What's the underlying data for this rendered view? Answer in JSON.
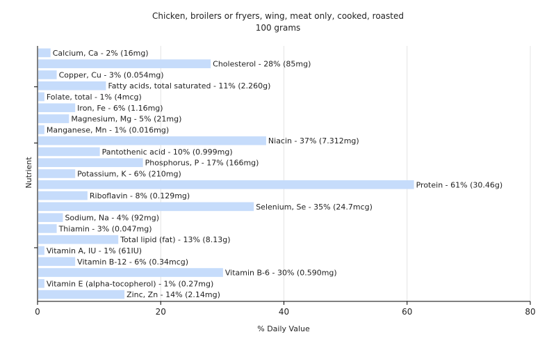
{
  "chart_data": {
    "type": "bar",
    "orientation": "horizontal",
    "title": "Chicken, broilers or fryers, wing, meat only, cooked, roasted",
    "subtitle": "100 grams",
    "xlabel": "% Daily Value",
    "ylabel": "Nutrient",
    "xlim": [
      0,
      80
    ],
    "xticks": [
      0,
      20,
      40,
      60,
      80
    ],
    "grid": true,
    "bar_color": "#c6dcfb",
    "categories": [
      "Calcium, Ca",
      "Cholesterol",
      "Copper, Cu",
      "Fatty acids, total saturated",
      "Folate, total",
      "Iron, Fe",
      "Magnesium, Mg",
      "Manganese, Mn",
      "Niacin",
      "Pantothenic acid",
      "Phosphorus, P",
      "Potassium, K",
      "Protein",
      "Riboflavin",
      "Selenium, Se",
      "Sodium, Na",
      "Thiamin",
      "Total lipid (fat)",
      "Vitamin A, IU",
      "Vitamin B-12",
      "Vitamin B-6",
      "Vitamin E (alpha-tocopherol)",
      "Zinc, Zn"
    ],
    "values": [
      2,
      28,
      3,
      11,
      1,
      6,
      5,
      1,
      37,
      10,
      17,
      6,
      61,
      8,
      35,
      4,
      3,
      13,
      1,
      6,
      30,
      1,
      14
    ],
    "labels": [
      "Calcium, Ca - 2% (16mg)",
      "Cholesterol - 28% (85mg)",
      "Copper, Cu - 3% (0.054mg)",
      "Fatty acids, total saturated - 11% (2.260g)",
      "Folate, total - 1% (4mcg)",
      "Iron, Fe - 6% (1.16mg)",
      "Magnesium, Mg - 5% (21mg)",
      "Manganese, Mn - 1% (0.016mg)",
      "Niacin - 37% (7.312mg)",
      "Pantothenic acid - 10% (0.999mg)",
      "Phosphorus, P - 17% (166mg)",
      "Potassium, K - 6% (210mg)",
      "Protein - 61% (30.46g)",
      "Riboflavin - 8% (0.129mg)",
      "Selenium, Se - 35% (24.7mcg)",
      "Sodium, Na - 4% (92mg)",
      "Thiamin - 3% (0.047mg)",
      "Total lipid (fat) - 13% (8.13g)",
      "Vitamin A, IU - 1% (61IU)",
      "Vitamin B-12 - 6% (0.34mcg)",
      "Vitamin B-6 - 30% (0.590mg)",
      "Vitamin E (alpha-tocopherol) - 1% (0.27mg)",
      "Zinc, Zn - 14% (2.14mg)"
    ]
  }
}
